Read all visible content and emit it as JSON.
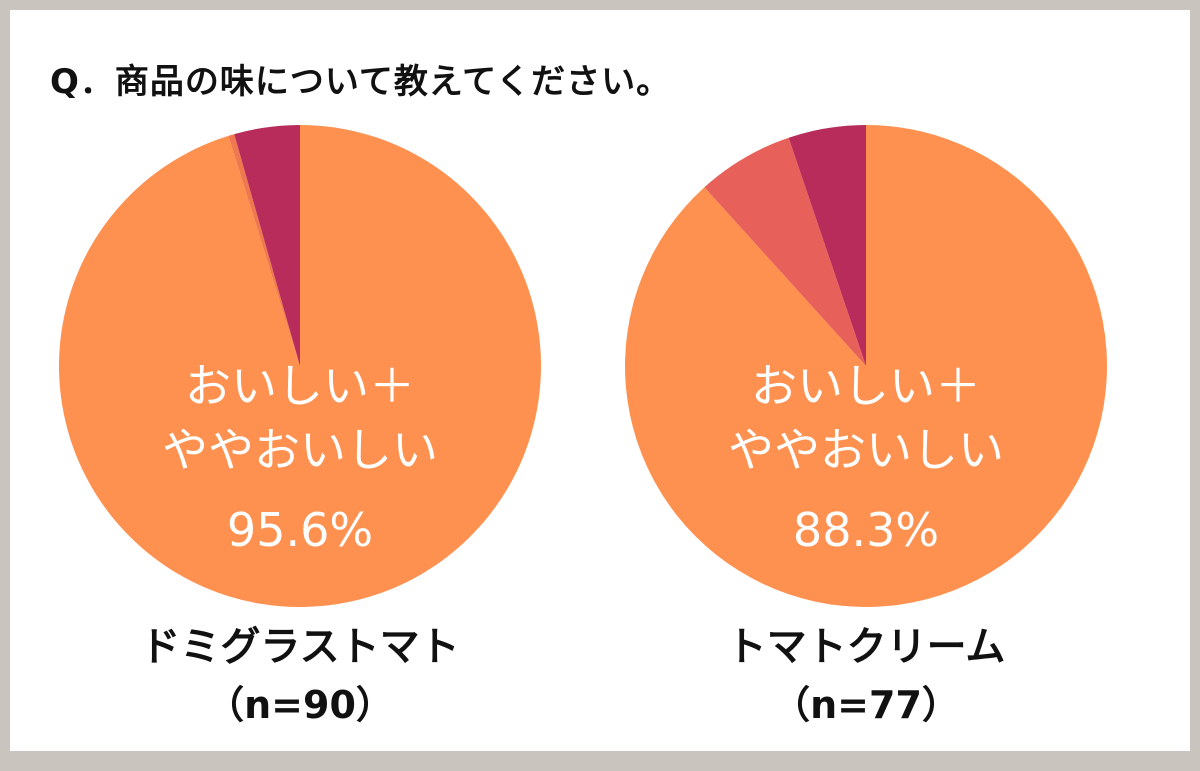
{
  "question": "Q．商品の味について教えてください。",
  "colors": {
    "oishii": "#ff9150",
    "yaya_oishii": "#ff9150",
    "other1": "#e8605a",
    "other2": "#b82c5c"
  },
  "chart_data": [
    {
      "type": "pie",
      "name": "ドミグラストマト",
      "n_label": "（n=90）",
      "label_lines": [
        "おいしい＋",
        "ややおいしい",
        "95.6%"
      ],
      "slices": [
        {
          "value": 95.2,
          "color": "#ff9150"
        },
        {
          "value": 0.4,
          "color": "#f0784e"
        },
        {
          "value": 4.4,
          "color": "#b82c5c"
        }
      ]
    },
    {
      "type": "pie",
      "name": "トマトクリーム",
      "n_label": "（n=77）",
      "label_lines": [
        "おいしい＋",
        "ややおいしい",
        "88.3%"
      ],
      "slices": [
        {
          "value": 88.3,
          "color": "#ff9150"
        },
        {
          "value": 6.5,
          "color": "#e8605a"
        },
        {
          "value": 5.2,
          "color": "#b82c5c"
        }
      ]
    }
  ]
}
